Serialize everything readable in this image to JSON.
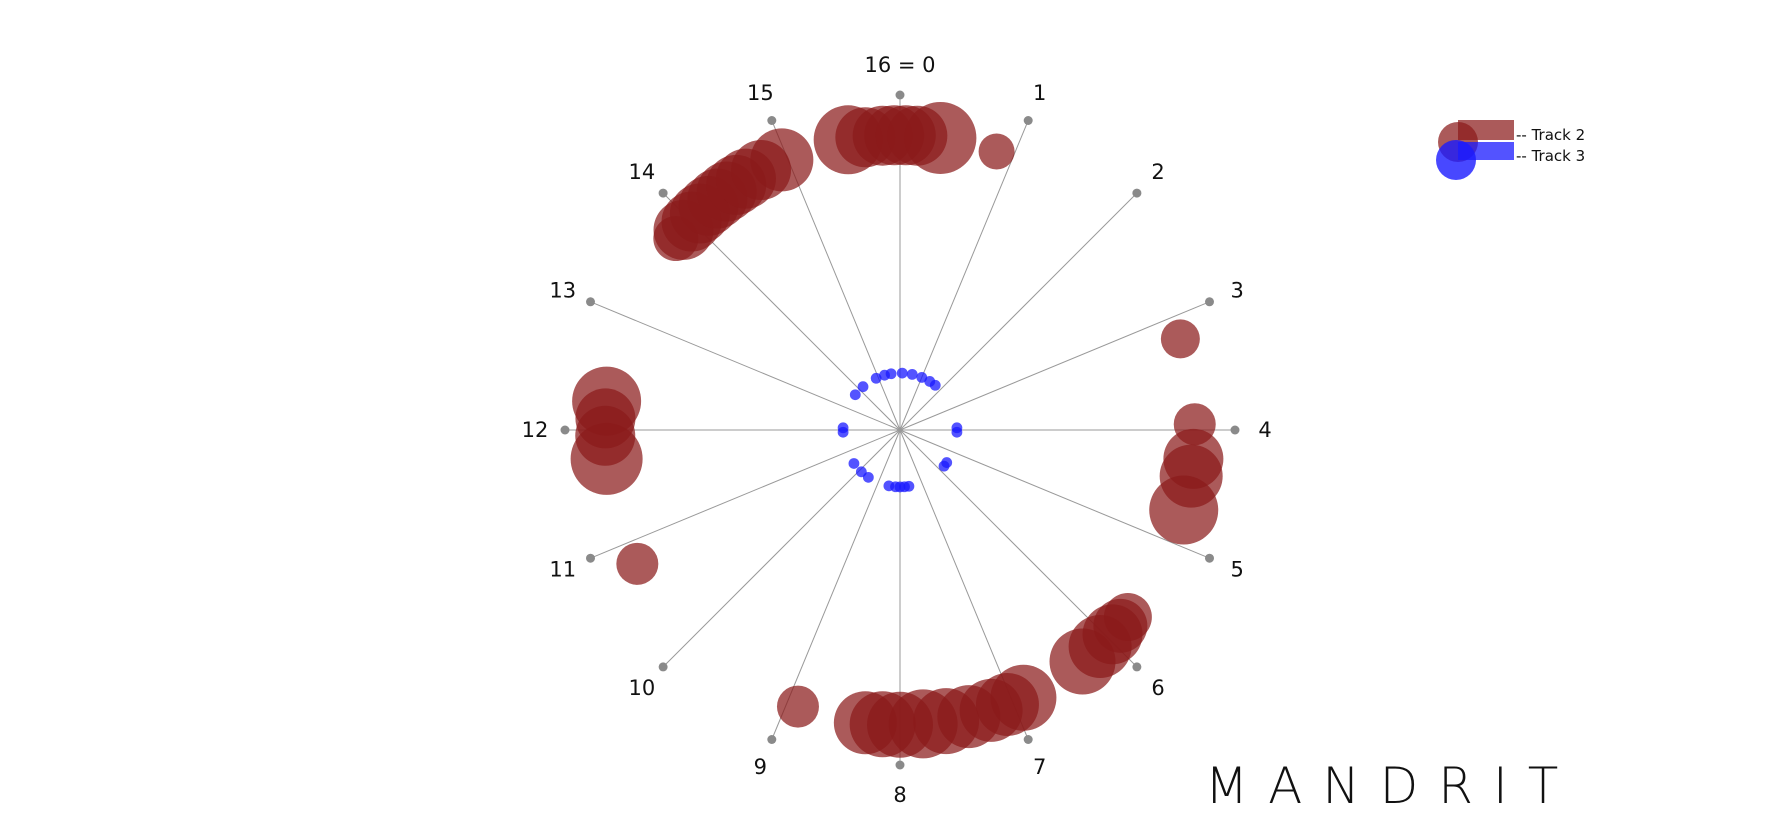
{
  "brand": "MANDRIT",
  "legend": [
    {
      "label": "-- Track 2",
      "color": "#8b1a1a"
    },
    {
      "label": "-- Track 3",
      "color": "#1a1aff"
    }
  ],
  "chart_data": {
    "type": "scatter",
    "subtype": "radial-rhythm-clock",
    "divisions": 16,
    "spoke_labels": [
      "16 = 0",
      "1",
      "2",
      "3",
      "4",
      "5",
      "6",
      "7",
      "8",
      "9",
      "10",
      "11",
      "12",
      "13",
      "14",
      "15"
    ],
    "colors": {
      "track2": "#8b1a1a",
      "track3": "#1a1aff",
      "spoke": "#999999"
    },
    "series": [
      {
        "name": "Track 2",
        "radius": 0.88,
        "points": [
          {
            "pos": 15.55,
            "size": 1.15
          },
          {
            "pos": 15.7,
            "size": 1.0
          },
          {
            "pos": 15.85,
            "size": 1.0
          },
          {
            "pos": 15.95,
            "size": 1.0
          },
          {
            "pos": 0.05,
            "size": 1.0
          },
          {
            "pos": 0.15,
            "size": 1.0
          },
          {
            "pos": 0.35,
            "size": 1.2
          },
          {
            "pos": 0.85,
            "size": 0.6
          },
          {
            "pos": 3.2,
            "size": 0.65
          },
          {
            "pos": 3.95,
            "size": 0.7
          },
          {
            "pos": 4.25,
            "size": 1.0
          },
          {
            "pos": 4.4,
            "size": 1.05
          },
          {
            "pos": 4.7,
            "size": 1.15
          },
          {
            "pos": 5.75,
            "size": 0.8
          },
          {
            "pos": 5.85,
            "size": 0.9
          },
          {
            "pos": 5.95,
            "size": 1.0
          },
          {
            "pos": 6.1,
            "size": 1.05
          },
          {
            "pos": 6.3,
            "size": 1.1
          },
          {
            "pos": 6.9,
            "size": 1.1
          },
          {
            "pos": 7.05,
            "size": 1.05
          },
          {
            "pos": 7.2,
            "size": 1.05
          },
          {
            "pos": 7.4,
            "size": 1.05
          },
          {
            "pos": 7.6,
            "size": 1.1
          },
          {
            "pos": 7.8,
            "size": 1.15
          },
          {
            "pos": 8.0,
            "size": 1.1
          },
          {
            "pos": 8.15,
            "size": 1.1
          },
          {
            "pos": 8.3,
            "size": 1.05
          },
          {
            "pos": 8.9,
            "size": 0.7
          },
          {
            "pos": 10.8,
            "size": 0.7
          },
          {
            "pos": 11.75,
            "size": 1.2
          },
          {
            "pos": 11.95,
            "size": 1.0
          },
          {
            "pos": 12.1,
            "size": 1.0
          },
          {
            "pos": 12.25,
            "size": 1.15
          },
          {
            "pos": 13.8,
            "size": 0.75
          },
          {
            "pos": 13.9,
            "size": 1.0
          },
          {
            "pos": 14.0,
            "size": 1.0
          },
          {
            "pos": 14.1,
            "size": 1.0
          },
          {
            "pos": 14.2,
            "size": 1.0
          },
          {
            "pos": 14.3,
            "size": 1.0
          },
          {
            "pos": 14.4,
            "size": 1.0
          },
          {
            "pos": 14.5,
            "size": 1.0
          },
          {
            "pos": 14.6,
            "size": 1.0
          },
          {
            "pos": 14.75,
            "size": 1.0
          },
          {
            "pos": 14.95,
            "size": 1.05
          }
        ]
      },
      {
        "name": "Track 3",
        "radius": 0.17,
        "points": [
          {
            "pos": 0.1,
            "size": 0.18
          },
          {
            "pos": 0.55,
            "size": 0.18
          },
          {
            "pos": 1.0,
            "size": 0.18
          },
          {
            "pos": 1.4,
            "size": 0.18
          },
          {
            "pos": 1.7,
            "size": 0.18
          },
          {
            "pos": 3.9,
            "size": 0.18
          },
          {
            "pos": 4.1,
            "size": 0.18
          },
          {
            "pos": 5.55,
            "size": 0.18
          },
          {
            "pos": 5.75,
            "size": 0.18
          },
          {
            "pos": 7.6,
            "size": 0.18
          },
          {
            "pos": 7.8,
            "size": 0.18
          },
          {
            "pos": 8.0,
            "size": 0.18
          },
          {
            "pos": 8.2,
            "size": 0.18
          },
          {
            "pos": 8.5,
            "size": 0.18
          },
          {
            "pos": 9.5,
            "size": 0.18
          },
          {
            "pos": 9.9,
            "size": 0.18
          },
          {
            "pos": 10.4,
            "size": 0.18
          },
          {
            "pos": 11.9,
            "size": 0.18
          },
          {
            "pos": 12.1,
            "size": 0.18
          },
          {
            "pos": 13.7,
            "size": 0.18
          },
          {
            "pos": 14.2,
            "size": 0.18
          },
          {
            "pos": 14.9,
            "size": 0.18
          },
          {
            "pos": 15.3,
            "size": 0.18
          },
          {
            "pos": 15.6,
            "size": 0.18
          }
        ]
      }
    ]
  }
}
